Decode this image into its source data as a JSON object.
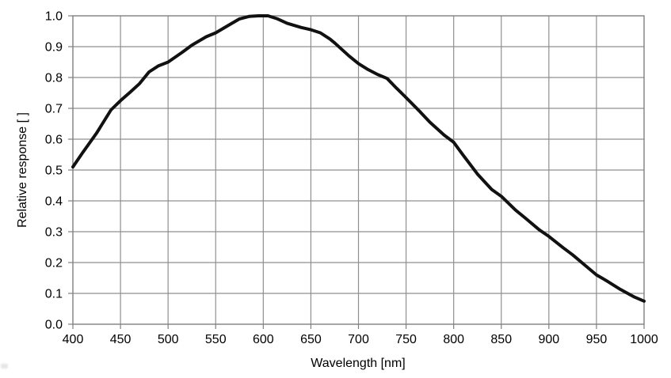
{
  "page": {
    "background": "#ffffff"
  },
  "colors": {
    "grid": "#8f8f8f",
    "axis_border": "#7f7f7f",
    "tick_mark": "#7f7f7f",
    "tick_text": "#000000",
    "curve": "#111111"
  },
  "chart_data": {
    "type": "line",
    "title": "",
    "xlabel": "Wavelength [nm]",
    "ylabel": "Relative response [ ]",
    "xlim": [
      400,
      1000
    ],
    "ylim": [
      0.0,
      1.0
    ],
    "x_ticks": [
      400,
      450,
      500,
      550,
      600,
      650,
      700,
      750,
      800,
      850,
      900,
      950,
      1000
    ],
    "y_ticks": [
      0.0,
      0.1,
      0.2,
      0.3,
      0.4,
      0.5,
      0.6,
      0.7,
      0.8,
      0.9,
      1.0
    ],
    "y_tick_labels": [
      "0.0",
      "0.1",
      "0.2",
      "0.3",
      "0.4",
      "0.5",
      "0.6",
      "0.7",
      "0.8",
      "0.9",
      "1.0"
    ],
    "grid": true,
    "legend_position": "none",
    "series": [
      {
        "name": "relative response",
        "color": "#111111",
        "points": [
          [
            400,
            0.51
          ],
          [
            410,
            0.555
          ],
          [
            425,
            0.62
          ],
          [
            440,
            0.695
          ],
          [
            450,
            0.725
          ],
          [
            460,
            0.752
          ],
          [
            470,
            0.78
          ],
          [
            480,
            0.818
          ],
          [
            490,
            0.838
          ],
          [
            500,
            0.85
          ],
          [
            515,
            0.882
          ],
          [
            525,
            0.905
          ],
          [
            540,
            0.932
          ],
          [
            550,
            0.945
          ],
          [
            565,
            0.972
          ],
          [
            575,
            0.99
          ],
          [
            585,
            0.998
          ],
          [
            595,
            1.0
          ],
          [
            605,
            1.0
          ],
          [
            615,
            0.99
          ],
          [
            625,
            0.976
          ],
          [
            640,
            0.962
          ],
          [
            650,
            0.955
          ],
          [
            660,
            0.945
          ],
          [
            670,
            0.925
          ],
          [
            675,
            0.912
          ],
          [
            690,
            0.87
          ],
          [
            700,
            0.845
          ],
          [
            710,
            0.826
          ],
          [
            720,
            0.81
          ],
          [
            730,
            0.797
          ],
          [
            740,
            0.765
          ],
          [
            750,
            0.735
          ],
          [
            765,
            0.688
          ],
          [
            775,
            0.655
          ],
          [
            790,
            0.613
          ],
          [
            800,
            0.59
          ],
          [
            810,
            0.548
          ],
          [
            825,
            0.487
          ],
          [
            840,
            0.437
          ],
          [
            850,
            0.415
          ],
          [
            865,
            0.37
          ],
          [
            875,
            0.345
          ],
          [
            890,
            0.306
          ],
          [
            900,
            0.285
          ],
          [
            915,
            0.248
          ],
          [
            925,
            0.225
          ],
          [
            940,
            0.186
          ],
          [
            950,
            0.16
          ],
          [
            960,
            0.142
          ],
          [
            975,
            0.113
          ],
          [
            990,
            0.088
          ],
          [
            1000,
            0.075
          ]
        ]
      }
    ]
  }
}
